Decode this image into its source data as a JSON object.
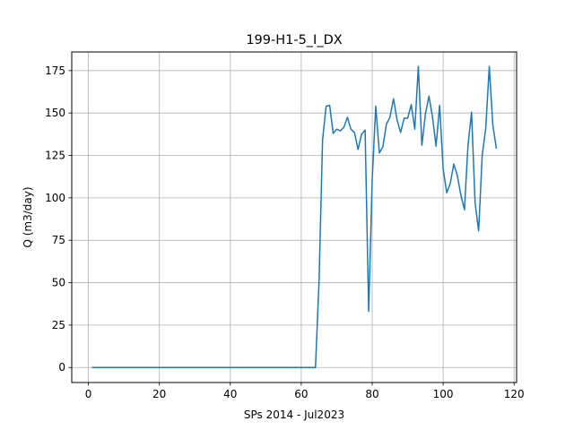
{
  "chart_data": {
    "type": "line",
    "title": "199-H1-5_I_DX",
    "xlabel": "SPs 2014 - Jul2023",
    "ylabel": "Q (m3/day)",
    "xlim": [
      -4.7,
      120.7
    ],
    "ylim": [
      -8.85,
      186
    ],
    "xticks": [
      0,
      20,
      40,
      60,
      80,
      100,
      120
    ],
    "yticks": [
      0,
      25,
      50,
      75,
      100,
      125,
      150,
      175
    ],
    "grid": true,
    "line_color": "#1f77b4",
    "series": [
      {
        "x": [
          1,
          2,
          3,
          4,
          5,
          6,
          7,
          8,
          9,
          10,
          11,
          12,
          13,
          14,
          15,
          16,
          17,
          18,
          19,
          20,
          21,
          22,
          23,
          24,
          25,
          26,
          27,
          28,
          29,
          30,
          31,
          32,
          33,
          34,
          35,
          36,
          37,
          38,
          39,
          40,
          41,
          42,
          43,
          44,
          45,
          46,
          47,
          48,
          49,
          50,
          51,
          52,
          53,
          54,
          55,
          56,
          57,
          58,
          59,
          60,
          61,
          62,
          63,
          64,
          65,
          66,
          67,
          68,
          69,
          70,
          71,
          72,
          73,
          74,
          75,
          76,
          77,
          78,
          79,
          80,
          81,
          82,
          83,
          84,
          85,
          86,
          87,
          88,
          89,
          90,
          91,
          92,
          93,
          94,
          95,
          96,
          97,
          98,
          99,
          100,
          101,
          102,
          103,
          104,
          105,
          106,
          107,
          108,
          109,
          110,
          111,
          112,
          113,
          114,
          115
        ],
        "y": [
          0,
          0,
          0,
          0,
          0,
          0,
          0,
          0,
          0,
          0,
          0,
          0,
          0,
          0,
          0,
          0,
          0,
          0,
          0,
          0,
          0,
          0,
          0,
          0,
          0,
          0,
          0,
          0,
          0,
          0,
          0,
          0,
          0,
          0,
          0,
          0,
          0,
          0,
          0,
          0,
          0,
          0,
          0,
          0,
          0,
          0,
          0,
          0,
          0,
          0,
          0,
          0,
          0,
          0,
          0,
          0,
          0,
          0,
          0,
          0,
          0,
          0,
          0,
          0,
          50,
          134,
          154,
          154.5,
          138,
          140.5,
          139.5,
          141.5,
          147.5,
          140.5,
          138.5,
          128.5,
          137.5,
          140,
          33,
          111,
          154,
          126.5,
          130,
          143.5,
          147.5,
          158.5,
          146,
          138.5,
          147,
          147,
          155,
          140.5,
          177.5,
          131,
          149.5,
          160,
          147.5,
          130.5,
          154.5,
          117,
          103,
          108.5,
          120,
          113,
          101.5,
          93,
          131,
          150.5,
          97,
          80.5,
          125,
          141,
          177.5,
          143,
          129
        ]
      }
    ]
  }
}
